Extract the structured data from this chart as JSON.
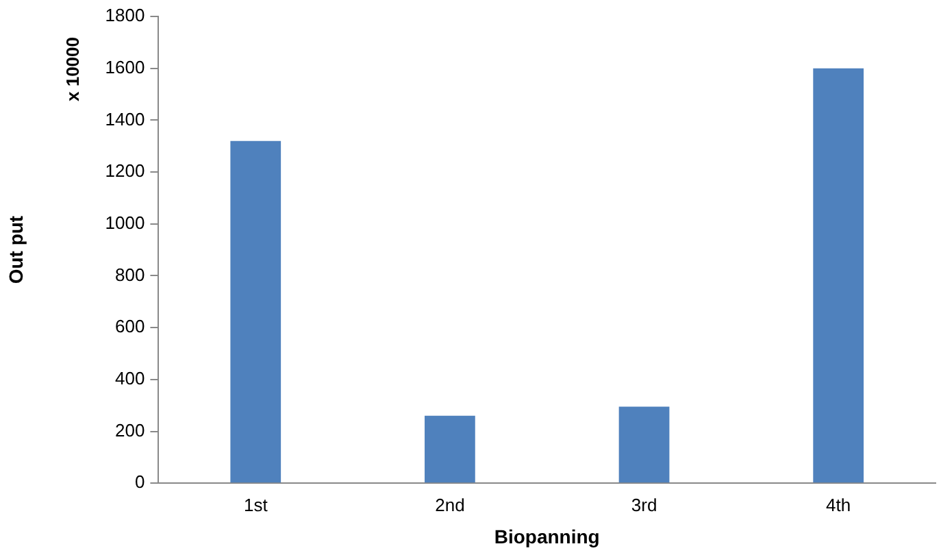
{
  "chart_data": {
    "type": "bar",
    "xlabel": "Biopanning",
    "ylabel": "Out put",
    "annotations": [
      "x 10000"
    ],
    "categories": [
      "1st",
      "2nd",
      "3rd",
      "4th"
    ],
    "values": [
      1320,
      260,
      295,
      1600
    ],
    "color": "#4f81bd",
    "ylim": [
      0,
      1800
    ],
    "yticks": [
      0,
      200,
      400,
      600,
      800,
      1000,
      1200,
      1400,
      1600,
      1800
    ],
    "grid": false,
    "legend": false
  }
}
